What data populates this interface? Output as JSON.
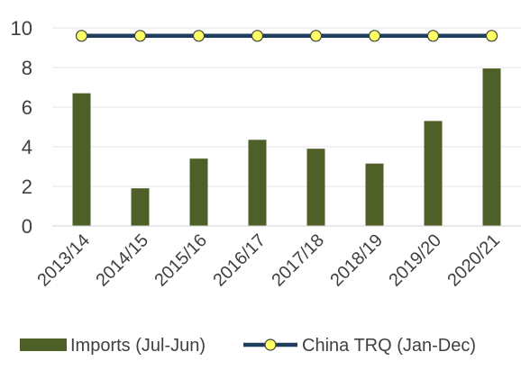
{
  "chart_data": {
    "type": "bar",
    "title": "",
    "xlabel": "",
    "ylabel": "",
    "ylim": [
      0,
      10
    ],
    "yticks": [
      0,
      2,
      4,
      6,
      8,
      10
    ],
    "grid": true,
    "legend_position": "bottom",
    "categories": [
      "2013/14",
      "2014/15",
      "2015/16",
      "2016/17",
      "2017/18",
      "2018/19",
      "2019/20",
      "2020/21"
    ],
    "series": [
      {
        "name": "Imports (Jul-Jun)",
        "type": "bar",
        "color": "#4e5f27",
        "values": [
          6.7,
          1.9,
          3.4,
          4.35,
          3.9,
          3.15,
          5.3,
          7.95
        ]
      },
      {
        "name": "China TRQ (Jan-Dec)",
        "type": "line",
        "color": "#1f3d5c",
        "marker_color": "#ffff66",
        "values": [
          9.6,
          9.6,
          9.6,
          9.6,
          9.6,
          9.6,
          9.6,
          9.6
        ]
      }
    ]
  }
}
